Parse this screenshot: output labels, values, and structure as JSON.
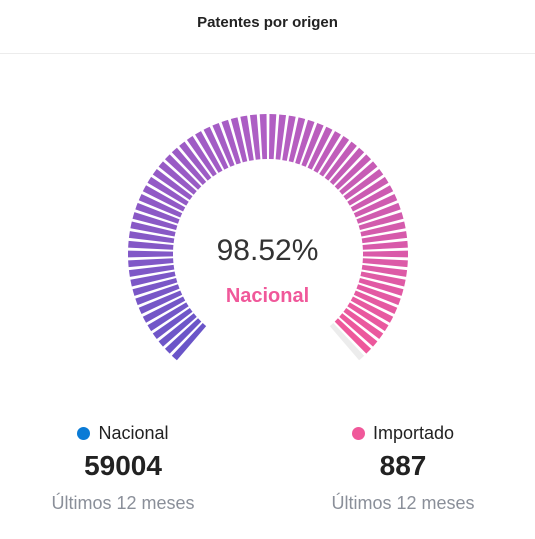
{
  "header": {
    "title": "Patentes por origen"
  },
  "chart_data": {
    "type": "gauge",
    "value_label": "98.52%",
    "center_label": "Nacional",
    "percent": 98.52,
    "series": [
      {
        "name": "Nacional",
        "values": [
          59004
        ],
        "color": "#0a7bd6"
      },
      {
        "name": "Importado",
        "values": [
          887
        ],
        "color": "#f0589a"
      }
    ],
    "gradient": [
      "#6a55c8",
      "#b05ec4",
      "#f0589a"
    ],
    "track_color": "#ececec"
  },
  "stats": {
    "nacional": {
      "label": "Nacional",
      "value": "59004",
      "caption": "Últimos 12 meses",
      "dot_color": "#0a7bd6"
    },
    "importado": {
      "label": "Importado",
      "value": "887",
      "caption": "Últimos 12 meses",
      "dot_color": "#f0589a"
    }
  }
}
